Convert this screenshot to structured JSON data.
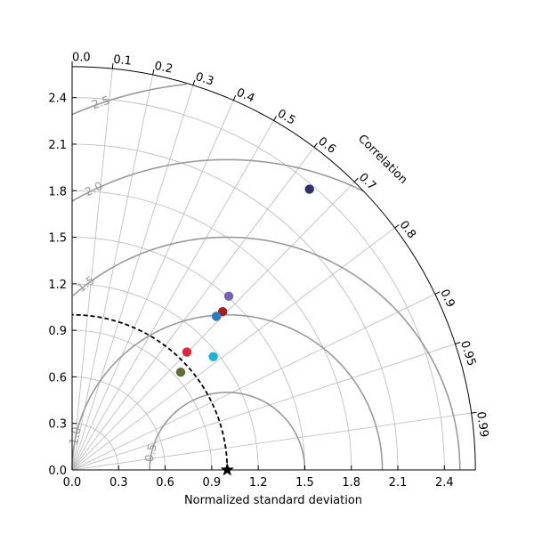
{
  "chart_data": {
    "type": "scatter",
    "subtype": "taylor-diagram",
    "xlabel": "Normalized standard deviation",
    "ylabel": "",
    "correlation_label": "Correlation",
    "std_range": [
      0,
      2.6
    ],
    "x_ticks": [
      "0.0",
      "0.3",
      "0.6",
      "0.9",
      "1.2",
      "1.5",
      "1.8",
      "2.1",
      "2.4"
    ],
    "y_ticks": [
      "0.0",
      "0.3",
      "0.6",
      "0.9",
      "1.2",
      "1.5",
      "1.8",
      "2.1",
      "2.4"
    ],
    "correlation_ticks": [
      {
        "value": 0.0,
        "label": "0.0"
      },
      {
        "value": 0.1,
        "label": "0.1"
      },
      {
        "value": 0.2,
        "label": "0.2"
      },
      {
        "value": 0.3,
        "label": "0.3"
      },
      {
        "value": 0.4,
        "label": "0.4"
      },
      {
        "value": 0.5,
        "label": "0.5"
      },
      {
        "value": 0.6,
        "label": "0.6"
      },
      {
        "value": 0.7,
        "label": "0.7"
      },
      {
        "value": 0.8,
        "label": "0.8"
      },
      {
        "value": 0.9,
        "label": "0.9"
      },
      {
        "value": 0.95,
        "label": "0.95"
      },
      {
        "value": 0.99,
        "label": "0.99"
      }
    ],
    "std_grid_arcs": [
      0.3,
      0.6,
      0.9,
      1.2,
      1.5,
      1.8,
      2.1,
      2.4
    ],
    "rms_contours": [
      {
        "value": 0.5,
        "label": "0.5"
      },
      {
        "value": 1.0,
        "label": "1.0"
      },
      {
        "value": 1.5,
        "label": "1.5"
      },
      {
        "value": 2.0,
        "label": "2.0"
      },
      {
        "value": 2.5,
        "label": "2.5"
      }
    ],
    "reference": {
      "std": 1.0,
      "correlation": 1.0
    },
    "points": [
      {
        "x": 1.53,
        "y": 1.81,
        "color": "#2e3069"
      },
      {
        "x": 1.01,
        "y": 1.12,
        "color": "#7463b3"
      },
      {
        "x": 0.97,
        "y": 1.02,
        "color": "#a3201c"
      },
      {
        "x": 0.93,
        "y": 0.99,
        "color": "#2d7bbf"
      },
      {
        "x": 0.74,
        "y": 0.76,
        "color": "#e0253a"
      },
      {
        "x": 0.91,
        "y": 0.73,
        "color": "#1fb4d2"
      },
      {
        "x": 0.7,
        "y": 0.63,
        "color": "#5f6e35"
      }
    ],
    "grid": true
  }
}
